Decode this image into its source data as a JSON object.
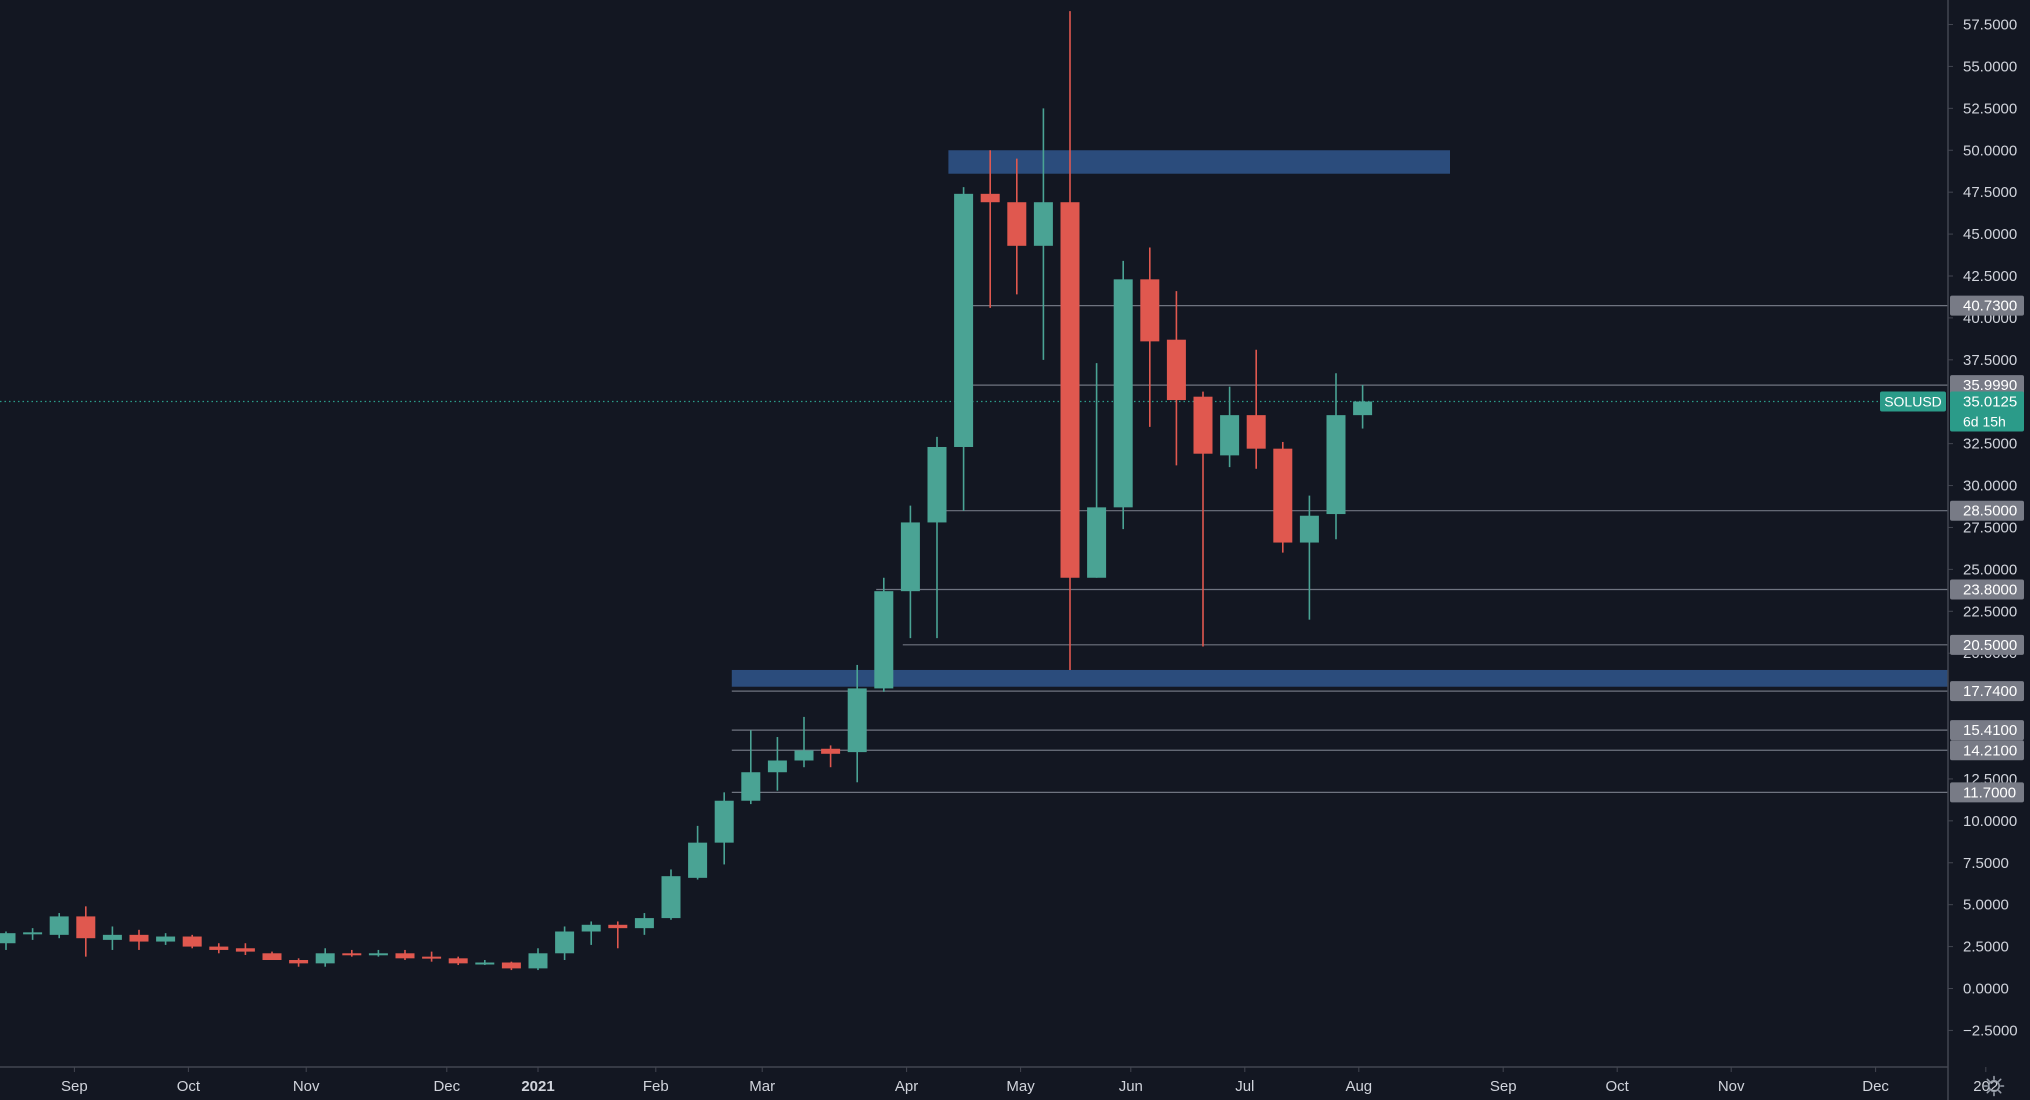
{
  "chart_data": {
    "type": "candlestick",
    "symbol_label": "SOLUSD",
    "countdown": "6d 15h",
    "current_price": 35.0125,
    "ylim": [
      -4.0,
      58.5
    ],
    "y_ticks": [
      {
        "value": 57.5,
        "label": "57.5000"
      },
      {
        "value": 55.0,
        "label": "55.0000"
      },
      {
        "value": 52.5,
        "label": "52.5000"
      },
      {
        "value": 50.0,
        "label": "50.0000"
      },
      {
        "value": 47.5,
        "label": "47.5000"
      },
      {
        "value": 45.0,
        "label": "45.0000"
      },
      {
        "value": 42.5,
        "label": "42.5000"
      },
      {
        "value": 40.0,
        "label": "40.0000"
      },
      {
        "value": 37.5,
        "label": "37.5000"
      },
      {
        "value": 32.5,
        "label": "32.5000"
      },
      {
        "value": 30.0,
        "label": "30.0000"
      },
      {
        "value": 27.5,
        "label": "27.5000"
      },
      {
        "value": 25.0,
        "label": "25.0000"
      },
      {
        "value": 22.5,
        "label": "22.5000"
      },
      {
        "value": 20.0,
        "label": "20.0000"
      },
      {
        "value": 12.5,
        "label": "12.5000"
      },
      {
        "value": 10.0,
        "label": "10.0000"
      },
      {
        "value": 7.5,
        "label": "7.5000"
      },
      {
        "value": 5.0,
        "label": "5.0000"
      },
      {
        "value": 2.5,
        "label": "2.5000"
      },
      {
        "value": 0.0,
        "label": "0.0000"
      },
      {
        "value": -2.5,
        "label": "−2.5000"
      }
    ],
    "x_ticks": [
      {
        "date": "2020-09-01",
        "label": "Sep",
        "bold": false
      },
      {
        "date": "2020-10-01",
        "label": "Oct",
        "bold": false
      },
      {
        "date": "2020-11-01",
        "label": "Nov",
        "bold": false
      },
      {
        "date": "2020-12-08",
        "label": "Dec",
        "bold": false
      },
      {
        "date": "2021-01-01",
        "label": "2021",
        "bold": true
      },
      {
        "date": "2021-02-01",
        "label": "Feb",
        "bold": false
      },
      {
        "date": "2021-03-01",
        "label": "Mar",
        "bold": false
      },
      {
        "date": "2021-04-08",
        "label": "Apr",
        "bold": false
      },
      {
        "date": "2021-05-08",
        "label": "May",
        "bold": false
      },
      {
        "date": "2021-06-06",
        "label": "Jun",
        "bold": false
      },
      {
        "date": "2021-07-06",
        "label": "Jul",
        "bold": false
      },
      {
        "date": "2021-08-05",
        "label": "Aug",
        "bold": false
      },
      {
        "date": "2021-09-12",
        "label": "Sep",
        "bold": false
      },
      {
        "date": "2021-10-12",
        "label": "Oct",
        "bold": false
      },
      {
        "date": "2021-11-11",
        "label": "Nov",
        "bold": false
      },
      {
        "date": "2021-12-19",
        "label": "Dec",
        "bold": false
      },
      {
        "date": "2022-01-17",
        "label": "202",
        "bold": false
      }
    ],
    "levels": [
      {
        "value": 40.73,
        "label": "40.7300",
        "from": "2021-04-21"
      },
      {
        "value": 35.99,
        "label": "35.9990",
        "from": "2021-04-21"
      },
      {
        "value": 28.5,
        "label": "28.5000",
        "from": "2021-04-14"
      },
      {
        "value": 23.8,
        "label": "23.8000",
        "from": "2021-03-31"
      },
      {
        "value": 20.5,
        "label": "20.5000",
        "from": "2021-04-07"
      },
      {
        "value": 17.74,
        "label": "17.7400",
        "from": "2021-02-21"
      },
      {
        "value": 15.41,
        "label": "15.4100",
        "from": "2021-02-21"
      },
      {
        "value": 14.21,
        "label": "14.2100",
        "from": "2021-02-21"
      },
      {
        "value": 11.7,
        "label": "11.7000",
        "from": "2021-02-21"
      }
    ],
    "zones": [
      {
        "from": "2021-04-19",
        "to": "2021-08-29",
        "low": 48.6,
        "high": 50.0
      },
      {
        "from": "2021-02-21",
        "to": "2022-01-31",
        "low": 18.0,
        "high": 19.0
      }
    ],
    "candles": [
      {
        "date": "2020-08-14",
        "o": 2.7,
        "h": 3.4,
        "l": 2.3,
        "c": 3.3
      },
      {
        "date": "2020-08-21",
        "o": 3.3,
        "h": 3.6,
        "l": 2.9,
        "c": 3.35
      },
      {
        "date": "2020-08-28",
        "o": 3.2,
        "h": 4.5,
        "l": 3.0,
        "c": 4.3
      },
      {
        "date": "2020-09-04",
        "o": 4.3,
        "h": 4.9,
        "l": 1.9,
        "c": 3.0
      },
      {
        "date": "2020-09-11",
        "o": 2.9,
        "h": 3.7,
        "l": 2.3,
        "c": 3.2
      },
      {
        "date": "2020-09-18",
        "o": 3.2,
        "h": 3.5,
        "l": 2.3,
        "c": 2.8
      },
      {
        "date": "2020-09-25",
        "o": 2.8,
        "h": 3.3,
        "l": 2.6,
        "c": 3.1
      },
      {
        "date": "2020-10-02",
        "o": 3.1,
        "h": 3.2,
        "l": 2.4,
        "c": 2.5
      },
      {
        "date": "2020-10-09",
        "o": 2.5,
        "h": 2.7,
        "l": 2.1,
        "c": 2.3
      },
      {
        "date": "2020-10-16",
        "o": 2.4,
        "h": 2.7,
        "l": 2.0,
        "c": 2.2
      },
      {
        "date": "2020-10-23",
        "o": 2.1,
        "h": 2.2,
        "l": 1.7,
        "c": 1.7
      },
      {
        "date": "2020-10-30",
        "o": 1.7,
        "h": 1.8,
        "l": 1.3,
        "c": 1.5
      },
      {
        "date": "2020-11-06",
        "o": 1.5,
        "h": 2.4,
        "l": 1.3,
        "c": 2.1
      },
      {
        "date": "2020-11-13",
        "o": 2.1,
        "h": 2.3,
        "l": 1.9,
        "c": 2.0
      },
      {
        "date": "2020-11-20",
        "o": 2.0,
        "h": 2.3,
        "l": 1.9,
        "c": 2.1
      },
      {
        "date": "2020-11-27",
        "o": 2.1,
        "h": 2.3,
        "l": 1.7,
        "c": 1.8
      },
      {
        "date": "2020-12-04",
        "o": 1.9,
        "h": 2.2,
        "l": 1.6,
        "c": 1.8
      },
      {
        "date": "2020-12-11",
        "o": 1.8,
        "h": 1.9,
        "l": 1.4,
        "c": 1.5
      },
      {
        "date": "2020-12-18",
        "o": 1.5,
        "h": 1.7,
        "l": 1.4,
        "c": 1.55
      },
      {
        "date": "2020-12-25",
        "o": 1.55,
        "h": 1.6,
        "l": 1.1,
        "c": 1.2
      },
      {
        "date": "2021-01-01",
        "o": 1.2,
        "h": 2.4,
        "l": 1.1,
        "c": 2.1
      },
      {
        "date": "2021-01-08",
        "o": 2.1,
        "h": 3.7,
        "l": 1.7,
        "c": 3.4
      },
      {
        "date": "2021-01-15",
        "o": 3.4,
        "h": 4.0,
        "l": 2.6,
        "c": 3.8
      },
      {
        "date": "2021-01-22",
        "o": 3.8,
        "h": 4.0,
        "l": 2.4,
        "c": 3.6
      },
      {
        "date": "2021-01-29",
        "o": 3.6,
        "h": 4.5,
        "l": 3.2,
        "c": 4.2
      },
      {
        "date": "2021-02-05",
        "o": 4.2,
        "h": 7.1,
        "l": 4.1,
        "c": 6.7
      },
      {
        "date": "2021-02-12",
        "o": 6.6,
        "h": 9.7,
        "l": 6.5,
        "c": 8.7
      },
      {
        "date": "2021-02-19",
        "o": 8.7,
        "h": 11.7,
        "l": 7.4,
        "c": 11.2
      },
      {
        "date": "2021-02-26",
        "o": 11.2,
        "h": 15.4,
        "l": 11.0,
        "c": 12.9
      },
      {
        "date": "2021-03-05",
        "o": 12.9,
        "h": 15.0,
        "l": 11.8,
        "c": 13.6
      },
      {
        "date": "2021-03-12",
        "o": 13.6,
        "h": 16.2,
        "l": 13.2,
        "c": 14.2
      },
      {
        "date": "2021-03-19",
        "o": 14.3,
        "h": 14.5,
        "l": 13.2,
        "c": 14.0
      },
      {
        "date": "2021-03-26",
        "o": 14.1,
        "h": 19.3,
        "l": 12.3,
        "c": 17.9
      },
      {
        "date": "2021-04-02",
        "o": 17.9,
        "h": 24.5,
        "l": 17.7,
        "c": 23.7
      },
      {
        "date": "2021-04-09",
        "o": 23.7,
        "h": 28.8,
        "l": 20.9,
        "c": 27.8
      },
      {
        "date": "2021-04-16",
        "o": 27.8,
        "h": 32.9,
        "l": 20.9,
        "c": 32.3
      },
      {
        "date": "2021-04-23",
        "o": 32.3,
        "h": 47.8,
        "l": 28.5,
        "c": 47.4
      },
      {
        "date": "2021-04-30",
        "o": 47.4,
        "h": 50.0,
        "l": 40.6,
        "c": 46.9
      },
      {
        "date": "2021-05-07",
        "o": 46.9,
        "h": 49.5,
        "l": 41.4,
        "c": 44.3
      },
      {
        "date": "2021-05-14",
        "o": 44.3,
        "h": 52.5,
        "l": 37.5,
        "c": 46.9
      },
      {
        "date": "2021-05-21",
        "o": 46.9,
        "h": 58.3,
        "l": 19.0,
        "c": 24.5
      },
      {
        "date": "2021-05-28",
        "o": 24.5,
        "h": 37.3,
        "l": 24.5,
        "c": 28.7
      },
      {
        "date": "2021-06-04",
        "o": 28.7,
        "h": 43.4,
        "l": 27.4,
        "c": 42.3
      },
      {
        "date": "2021-06-11",
        "o": 42.3,
        "h": 44.2,
        "l": 33.5,
        "c": 38.6
      },
      {
        "date": "2021-06-18",
        "o": 38.7,
        "h": 41.6,
        "l": 31.2,
        "c": 35.1
      },
      {
        "date": "2021-06-25",
        "o": 35.3,
        "h": 35.6,
        "l": 20.4,
        "c": 31.9
      },
      {
        "date": "2021-07-02",
        "o": 31.8,
        "h": 35.9,
        "l": 31.1,
        "c": 34.2
      },
      {
        "date": "2021-07-09",
        "o": 34.2,
        "h": 38.1,
        "l": 31.0,
        "c": 32.2
      },
      {
        "date": "2021-07-16",
        "o": 32.2,
        "h": 32.6,
        "l": 26.0,
        "c": 26.6
      },
      {
        "date": "2021-07-23",
        "o": 26.6,
        "h": 29.4,
        "l": 22.0,
        "c": 28.2
      },
      {
        "date": "2021-07-30",
        "o": 28.3,
        "h": 36.7,
        "l": 26.8,
        "c": 34.2
      },
      {
        "date": "2021-08-06",
        "o": 34.2,
        "h": 36.0,
        "l": 33.4,
        "c": 35.0125
      }
    ],
    "colors": {
      "background": "#131722",
      "up": "#4aa394",
      "down": "#e0584f",
      "zone": "#2c4f82",
      "level_line": "#6f7480",
      "level_tag_bg": "#787b86",
      "price_tag_bg": "#2b9b89",
      "axis_text": "#d1d4dc",
      "axis_border": "#434651"
    }
  }
}
